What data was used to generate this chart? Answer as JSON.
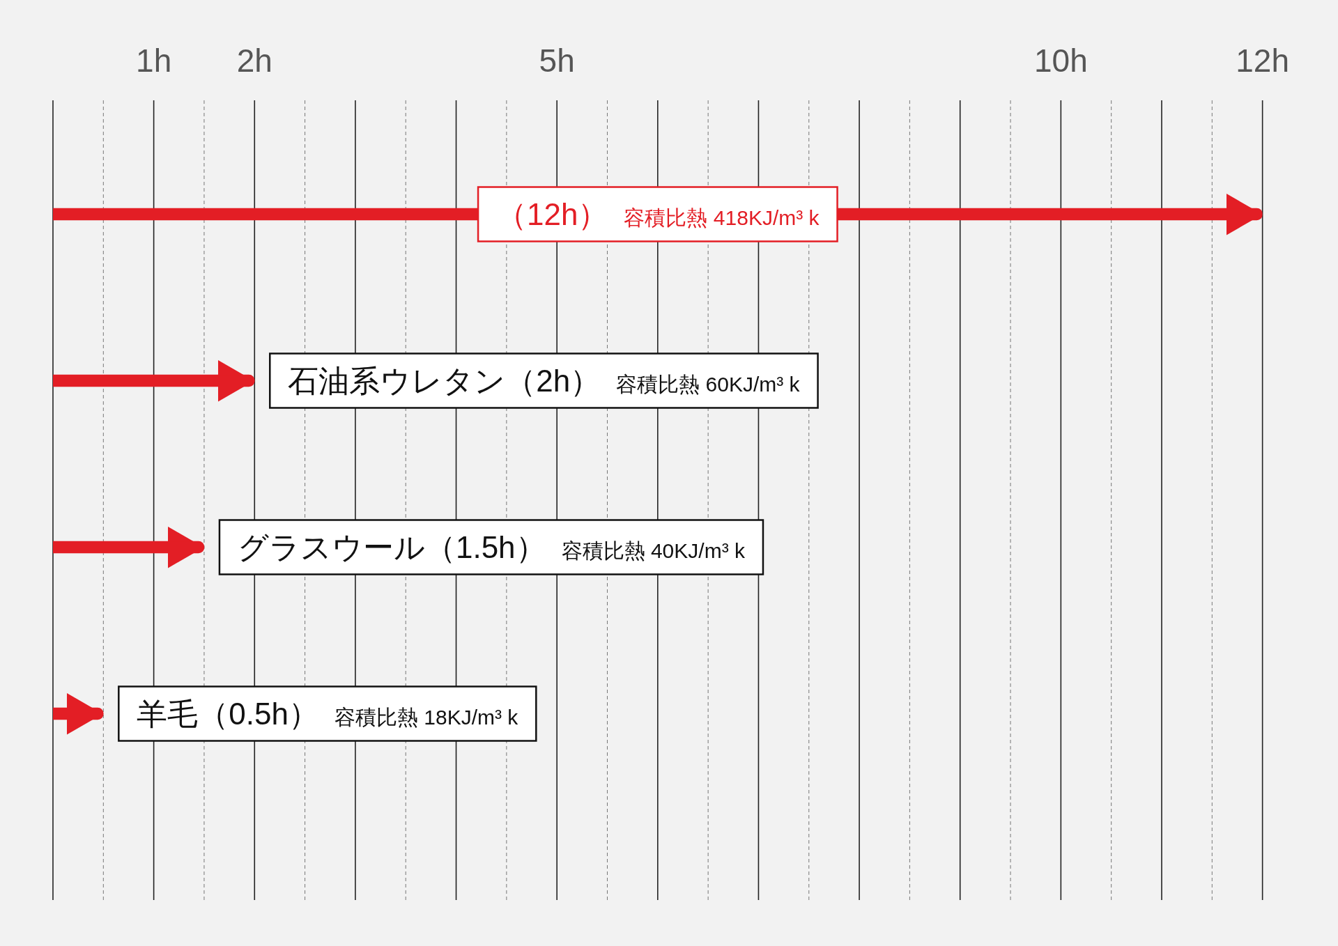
{
  "chart_data": {
    "type": "bar",
    "orientation": "horizontal",
    "categories": [
      null,
      "石油系ウレタン",
      "グラスウール",
      "羊毛"
    ],
    "values": [
      12,
      2,
      1.5,
      0.5
    ],
    "color": "#e31e25",
    "value_labels": [
      "（12h）",
      "（2h）",
      "（1.5h）",
      "（0.5h）"
    ],
    "annotations": [
      "容積比熱 418KJ/m³ k",
      "容積比熱 60KJ/m³ k",
      "容積比熱 40KJ/m³ k",
      "容積比熱 18KJ/m³ k"
    ],
    "xlim": [
      0,
      12
    ],
    "xticks": [
      {
        "value": 0,
        "label": null
      },
      {
        "value": 0.5,
        "label": null
      },
      {
        "value": 1,
        "label": "1h"
      },
      {
        "value": 1.5,
        "label": null
      },
      {
        "value": 2,
        "label": "2h"
      },
      {
        "value": 2.5,
        "label": null
      },
      {
        "value": 3,
        "label": null
      },
      {
        "value": 3.5,
        "label": null
      },
      {
        "value": 4,
        "label": null
      },
      {
        "value": 4.5,
        "label": null
      },
      {
        "value": 5,
        "label": "5h"
      },
      {
        "value": 5.5,
        "label": null
      },
      {
        "value": 6,
        "label": null
      },
      {
        "value": 6.5,
        "label": null
      },
      {
        "value": 7,
        "label": null
      },
      {
        "value": 7.5,
        "label": null
      },
      {
        "value": 8,
        "label": null
      },
      {
        "value": 8.5,
        "label": null
      },
      {
        "value": 9,
        "label": null
      },
      {
        "value": 9.5,
        "label": null
      },
      {
        "value": 10,
        "label": "10h"
      },
      {
        "value": 10.5,
        "label": null
      },
      {
        "value": 11,
        "label": null
      },
      {
        "value": 11.5,
        "label": null
      },
      {
        "value": 12,
        "label": "12h"
      }
    ],
    "grid": "x",
    "tick_labels": "x"
  }
}
